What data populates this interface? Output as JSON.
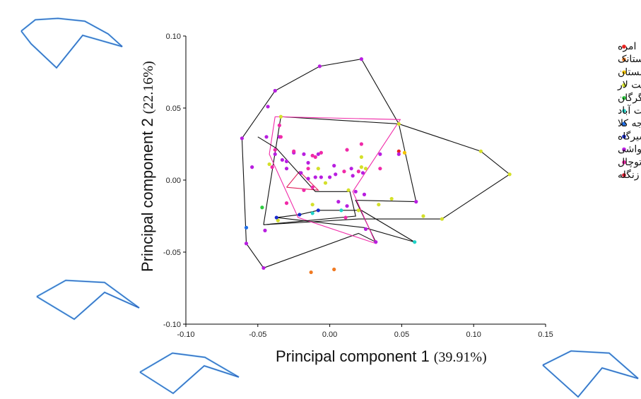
{
  "chart_data": {
    "type": "scatter",
    "title": "",
    "xlabel": "Principal component 1",
    "xlabel_pct": "(39.91%)",
    "ylabel": "Principal component 2",
    "ylabel_pct": "(22.16%)",
    "xlim": [
      -0.1,
      0.15
    ],
    "ylim": [
      -0.1,
      0.1
    ],
    "x_ticks": [
      "-0.10",
      "-0.05",
      "0.00",
      "0.05",
      "0.10",
      "0.15"
    ],
    "y_ticks": [
      "0.10",
      "0.05",
      "0.00",
      "-0.05",
      "-0.10"
    ],
    "legend_position": "top-right",
    "series": [
      {
        "name": "امره",
        "color": "#e8231f",
        "points": [
          [
            0.048,
            0.02
          ]
        ],
        "hull": []
      },
      {
        "name": "برنجستانک",
        "color": "#f07a22",
        "points": [
          [
            -0.013,
            -0.064
          ],
          [
            0.003,
            -0.062
          ]
        ],
        "hull": []
      },
      {
        "name": "چمستان",
        "color": "#f5c400",
        "points": [
          [
            0.052,
            0.019
          ]
        ],
        "hull": []
      },
      {
        "name": "دشت لار",
        "color": "#d4e02a",
        "points": [
          [
            -0.034,
            0.044
          ],
          [
            -0.042,
            0.011
          ],
          [
            0.048,
            0.039
          ],
          [
            0.105,
            0.02
          ],
          [
            0.125,
            0.004
          ],
          [
            0.078,
            -0.027
          ],
          [
            0.065,
            -0.025
          ],
          [
            0.034,
            -0.017
          ],
          [
            0.022,
            0.016
          ],
          [
            0.025,
            0.008
          ],
          [
            0.022,
            0.009
          ],
          [
            -0.003,
            -0.002
          ],
          [
            -0.012,
            -0.017
          ],
          [
            0.013,
            -0.007
          ],
          [
            -0.008,
            0.008
          ],
          [
            0.02,
            -0.021
          ],
          [
            -0.036,
            -0.028
          ],
          [
            0.043,
            -0.013
          ]
        ],
        "hull": [
          [
            -0.046,
            -0.031
          ],
          [
            -0.034,
            0.044
          ],
          [
            0.048,
            0.039
          ],
          [
            0.105,
            0.02
          ],
          [
            0.125,
            0.004
          ],
          [
            0.078,
            -0.027
          ],
          [
            0.02,
            -0.027
          ],
          [
            -0.046,
            -0.031
          ]
        ]
      },
      {
        "name": "گلوگاه و گرگان",
        "color": "#2ecc40",
        "points": [
          [
            -0.047,
            -0.019
          ]
        ],
        "hull": []
      },
      {
        "name": "جنت آباد",
        "color": "#1fd3c8",
        "points": [
          [
            0.059,
            -0.043
          ],
          [
            0.008,
            -0.021
          ],
          [
            -0.012,
            -0.023
          ]
        ],
        "hull": []
      },
      {
        "name": "رویان و خواجه کلا",
        "color": "#1f6fe8",
        "points": [
          [
            -0.058,
            -0.033
          ]
        ],
        "hull": []
      },
      {
        "name": "شیرگاه",
        "color": "#1a2bd0",
        "points": [
          [
            -0.037,
            -0.026
          ],
          [
            -0.021,
            -0.024
          ],
          [
            -0.008,
            -0.021
          ]
        ],
        "hull": [
          [
            -0.037,
            -0.026
          ],
          [
            -0.021,
            -0.024
          ],
          [
            -0.008,
            -0.021
          ],
          [
            0.022,
            -0.021
          ],
          [
            0.059,
            -0.043
          ],
          [
            0.024,
            -0.033
          ],
          [
            -0.037,
            -0.026
          ]
        ]
      },
      {
        "name": "تنگه واشی",
        "color": "#b81ee0",
        "points": [
          [
            -0.061,
            0.029
          ],
          [
            -0.058,
            -0.044
          ],
          [
            -0.046,
            -0.061
          ],
          [
            -0.045,
            -0.035
          ],
          [
            -0.054,
            0.009
          ],
          [
            -0.044,
            0.03
          ],
          [
            -0.038,
            0.062
          ],
          [
            -0.043,
            0.051
          ],
          [
            -0.007,
            0.079
          ],
          [
            0.022,
            0.084
          ],
          [
            0.032,
            -0.043
          ],
          [
            0.025,
            -0.034
          ],
          [
            0.012,
            -0.018
          ],
          [
            0.006,
            -0.015
          ],
          [
            0.018,
            -0.008
          ],
          [
            0.024,
            -0.01
          ],
          [
            0.06,
            -0.015
          ],
          [
            0.048,
            0.018
          ],
          [
            0.023,
            0.005
          ],
          [
            0.016,
            0.003
          ],
          [
            0.015,
            0.008
          ],
          [
            0.004,
            0.004
          ],
          [
            0.0,
            0.002
          ],
          [
            -0.006,
            0.002
          ],
          [
            -0.01,
            0.002
          ],
          [
            -0.015,
            0.001
          ],
          [
            -0.02,
            0.005
          ],
          [
            -0.03,
            0.008
          ],
          [
            -0.033,
            0.014
          ],
          [
            -0.038,
            0.018
          ],
          [
            -0.035,
            0.03
          ],
          [
            -0.025,
            0.019
          ],
          [
            -0.03,
            0.013
          ],
          [
            -0.008,
            0.018
          ],
          [
            0.003,
            0.01
          ],
          [
            0.035,
            0.018
          ],
          [
            -0.015,
            0.012
          ],
          [
            -0.018,
            0.018
          ]
        ],
        "hull": [
          [
            -0.061,
            0.029
          ],
          [
            -0.038,
            0.062
          ],
          [
            -0.007,
            0.079
          ],
          [
            0.022,
            0.084
          ],
          [
            0.048,
            0.039
          ],
          [
            0.06,
            -0.015
          ],
          [
            0.018,
            -0.014
          ],
          [
            0.032,
            -0.043
          ],
          [
            0.02,
            -0.037
          ],
          [
            -0.046,
            -0.061
          ],
          [
            -0.058,
            -0.044
          ],
          [
            -0.061,
            0.029
          ]
        ]
      },
      {
        "name": "توچال",
        "color": "#f02aa8",
        "points": [
          [
            -0.035,
            0.038
          ],
          [
            -0.034,
            0.03
          ],
          [
            -0.038,
            0.021
          ],
          [
            -0.025,
            0.02
          ],
          [
            -0.012,
            0.017
          ],
          [
            -0.01,
            0.016
          ],
          [
            -0.006,
            0.019
          ],
          [
            0.012,
            0.021
          ],
          [
            0.022,
            0.025
          ],
          [
            0.035,
            0.008
          ],
          [
            -0.04,
            0.009
          ],
          [
            -0.015,
            0.008
          ],
          [
            0.01,
            0.006
          ],
          [
            0.02,
            0.006
          ],
          [
            -0.018,
            -0.007
          ],
          [
            -0.03,
            -0.016
          ],
          [
            -0.012,
            -0.005
          ],
          [
            0.011,
            -0.026
          ]
        ],
        "hull": [
          [
            -0.038,
            0.044
          ],
          [
            0.049,
            0.042
          ],
          [
            0.016,
            -0.008
          ],
          [
            0.032,
            -0.044
          ],
          [
            -0.022,
            -0.026
          ],
          [
            -0.042,
            0.018
          ],
          [
            -0.038,
            0.044
          ]
        ]
      },
      {
        "name": "پل زنگله",
        "color": "#d9182b",
        "points": [],
        "hull": []
      }
    ],
    "extra_hulls": [
      {
        "color": "#e0205a",
        "points": [
          [
            -0.03,
            -0.005
          ],
          [
            -0.021,
            0.006
          ],
          [
            -0.008,
            -0.007
          ],
          [
            -0.03,
            -0.005
          ]
        ]
      },
      {
        "color": "#111111",
        "points": [
          [
            -0.05,
            0.03
          ],
          [
            -0.037,
            0.022
          ],
          [
            -0.01,
            -0.008
          ],
          [
            0.014,
            -0.008
          ],
          [
            0.018,
            -0.025
          ],
          [
            -0.046,
            -0.031
          ]
        ]
      }
    ]
  },
  "thumbnails": [
    {
      "position": "top-left"
    },
    {
      "position": "middle-left"
    },
    {
      "position": "bottom-center"
    },
    {
      "position": "bottom-right"
    }
  ]
}
